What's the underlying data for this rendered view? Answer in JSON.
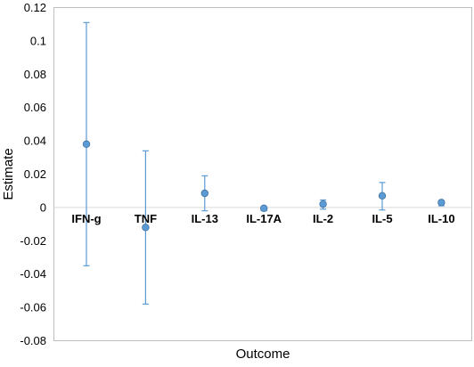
{
  "chart_data": {
    "type": "scatter",
    "subtype": "point-estimate-with-error-bars",
    "title": "",
    "xlabel": "Outcome",
    "ylabel": "Estimate",
    "ylim": [
      -0.08,
      0.12
    ],
    "yticks": [
      -0.08,
      -0.06,
      -0.04,
      -0.02,
      0,
      0.02,
      0.04,
      0.06,
      0.08,
      0.1,
      0.12
    ],
    "ytick_labels": [
      "-0.08",
      "-0.06",
      "-0.04",
      "-0.02",
      "0",
      "0.02",
      "0.04",
      "0.06",
      "0.08",
      "0.1",
      "0.12"
    ],
    "grid": false,
    "legend": "none",
    "colors": {
      "marker": "#5B9BD5",
      "marker_edge": "#41719C",
      "error_bar": "#5B9BD5",
      "zero_line": "#D9D9D9",
      "frame": "#BFBFBF"
    },
    "categories": [
      "IFN-g",
      "TNF",
      "IL-13",
      "IL-17A",
      "IL-2",
      "IL-5",
      "IL-10"
    ],
    "estimates": [
      0.038,
      -0.012,
      0.0085,
      -0.0005,
      0.002,
      0.007,
      0.003
    ],
    "lower": [
      -0.035,
      -0.058,
      -0.002,
      -0.002,
      -0.001,
      -0.0015,
      0.001
    ],
    "upper": [
      0.111,
      0.034,
      0.019,
      0.0005,
      0.0045,
      0.015,
      0.004
    ]
  }
}
